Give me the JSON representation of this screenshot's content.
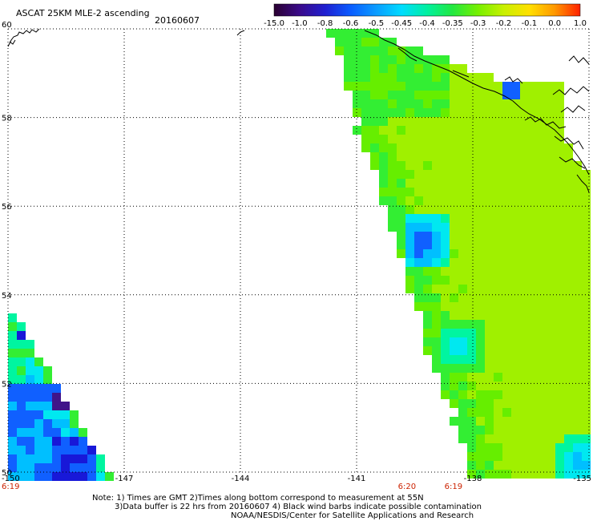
{
  "header": {
    "title": "ASCAT 25KM MLE-2 ascending",
    "date": "20160607"
  },
  "colorbar": {
    "labels": [
      "-15.0",
      "-1.0",
      "-0.8",
      "-0.6",
      "-0.5",
      "-0.45",
      "-0.4",
      "-0.35",
      "-0.3",
      "-0.2",
      "-0.1",
      "0.0",
      "1.0"
    ],
    "colors": [
      "#2a0030",
      "#3a0a8a",
      "#1f1fd0",
      "#0a5cff",
      "#0a9cff",
      "#00dcff",
      "#00f0a0",
      "#22e840",
      "#77f000",
      "#c8f000",
      "#ffe000",
      "#ff9800",
      "#ff2000"
    ]
  },
  "map": {
    "lat_labels": [
      "60",
      "58",
      "56",
      "54",
      "52",
      "50"
    ],
    "lon_labels": [
      "-150",
      "-147",
      "-144",
      "-141",
      "-138",
      "-135"
    ],
    "time_labels": [
      {
        "text": "6:19",
        "lon": "-150"
      },
      {
        "text": "6:20",
        "lon": "-139.7"
      },
      {
        "text": "6:19",
        "lon": "-138.5"
      }
    ],
    "palette": {
      "lime": "#a0f000",
      "green": "#66ee00",
      "brightgreen": "#33ee33",
      "teal": "#00f5a0",
      "cyan": "#00e8f0",
      "lightblue": "#00bfff",
      "blue": "#1060ff",
      "deepblue": "#1818d8",
      "purple": "#40148a"
    }
  },
  "notes": {
    "line1": "Note: 1) Times are GMT 2)Times along bottom correspond to measurement at 55N",
    "line2": "3)Data buffer is 22 hrs from 20160607 4) Black wind barbs indicate possible contamination",
    "line3": "NOAA/NESDIS/Center for Satellite Applications and Research"
  }
}
